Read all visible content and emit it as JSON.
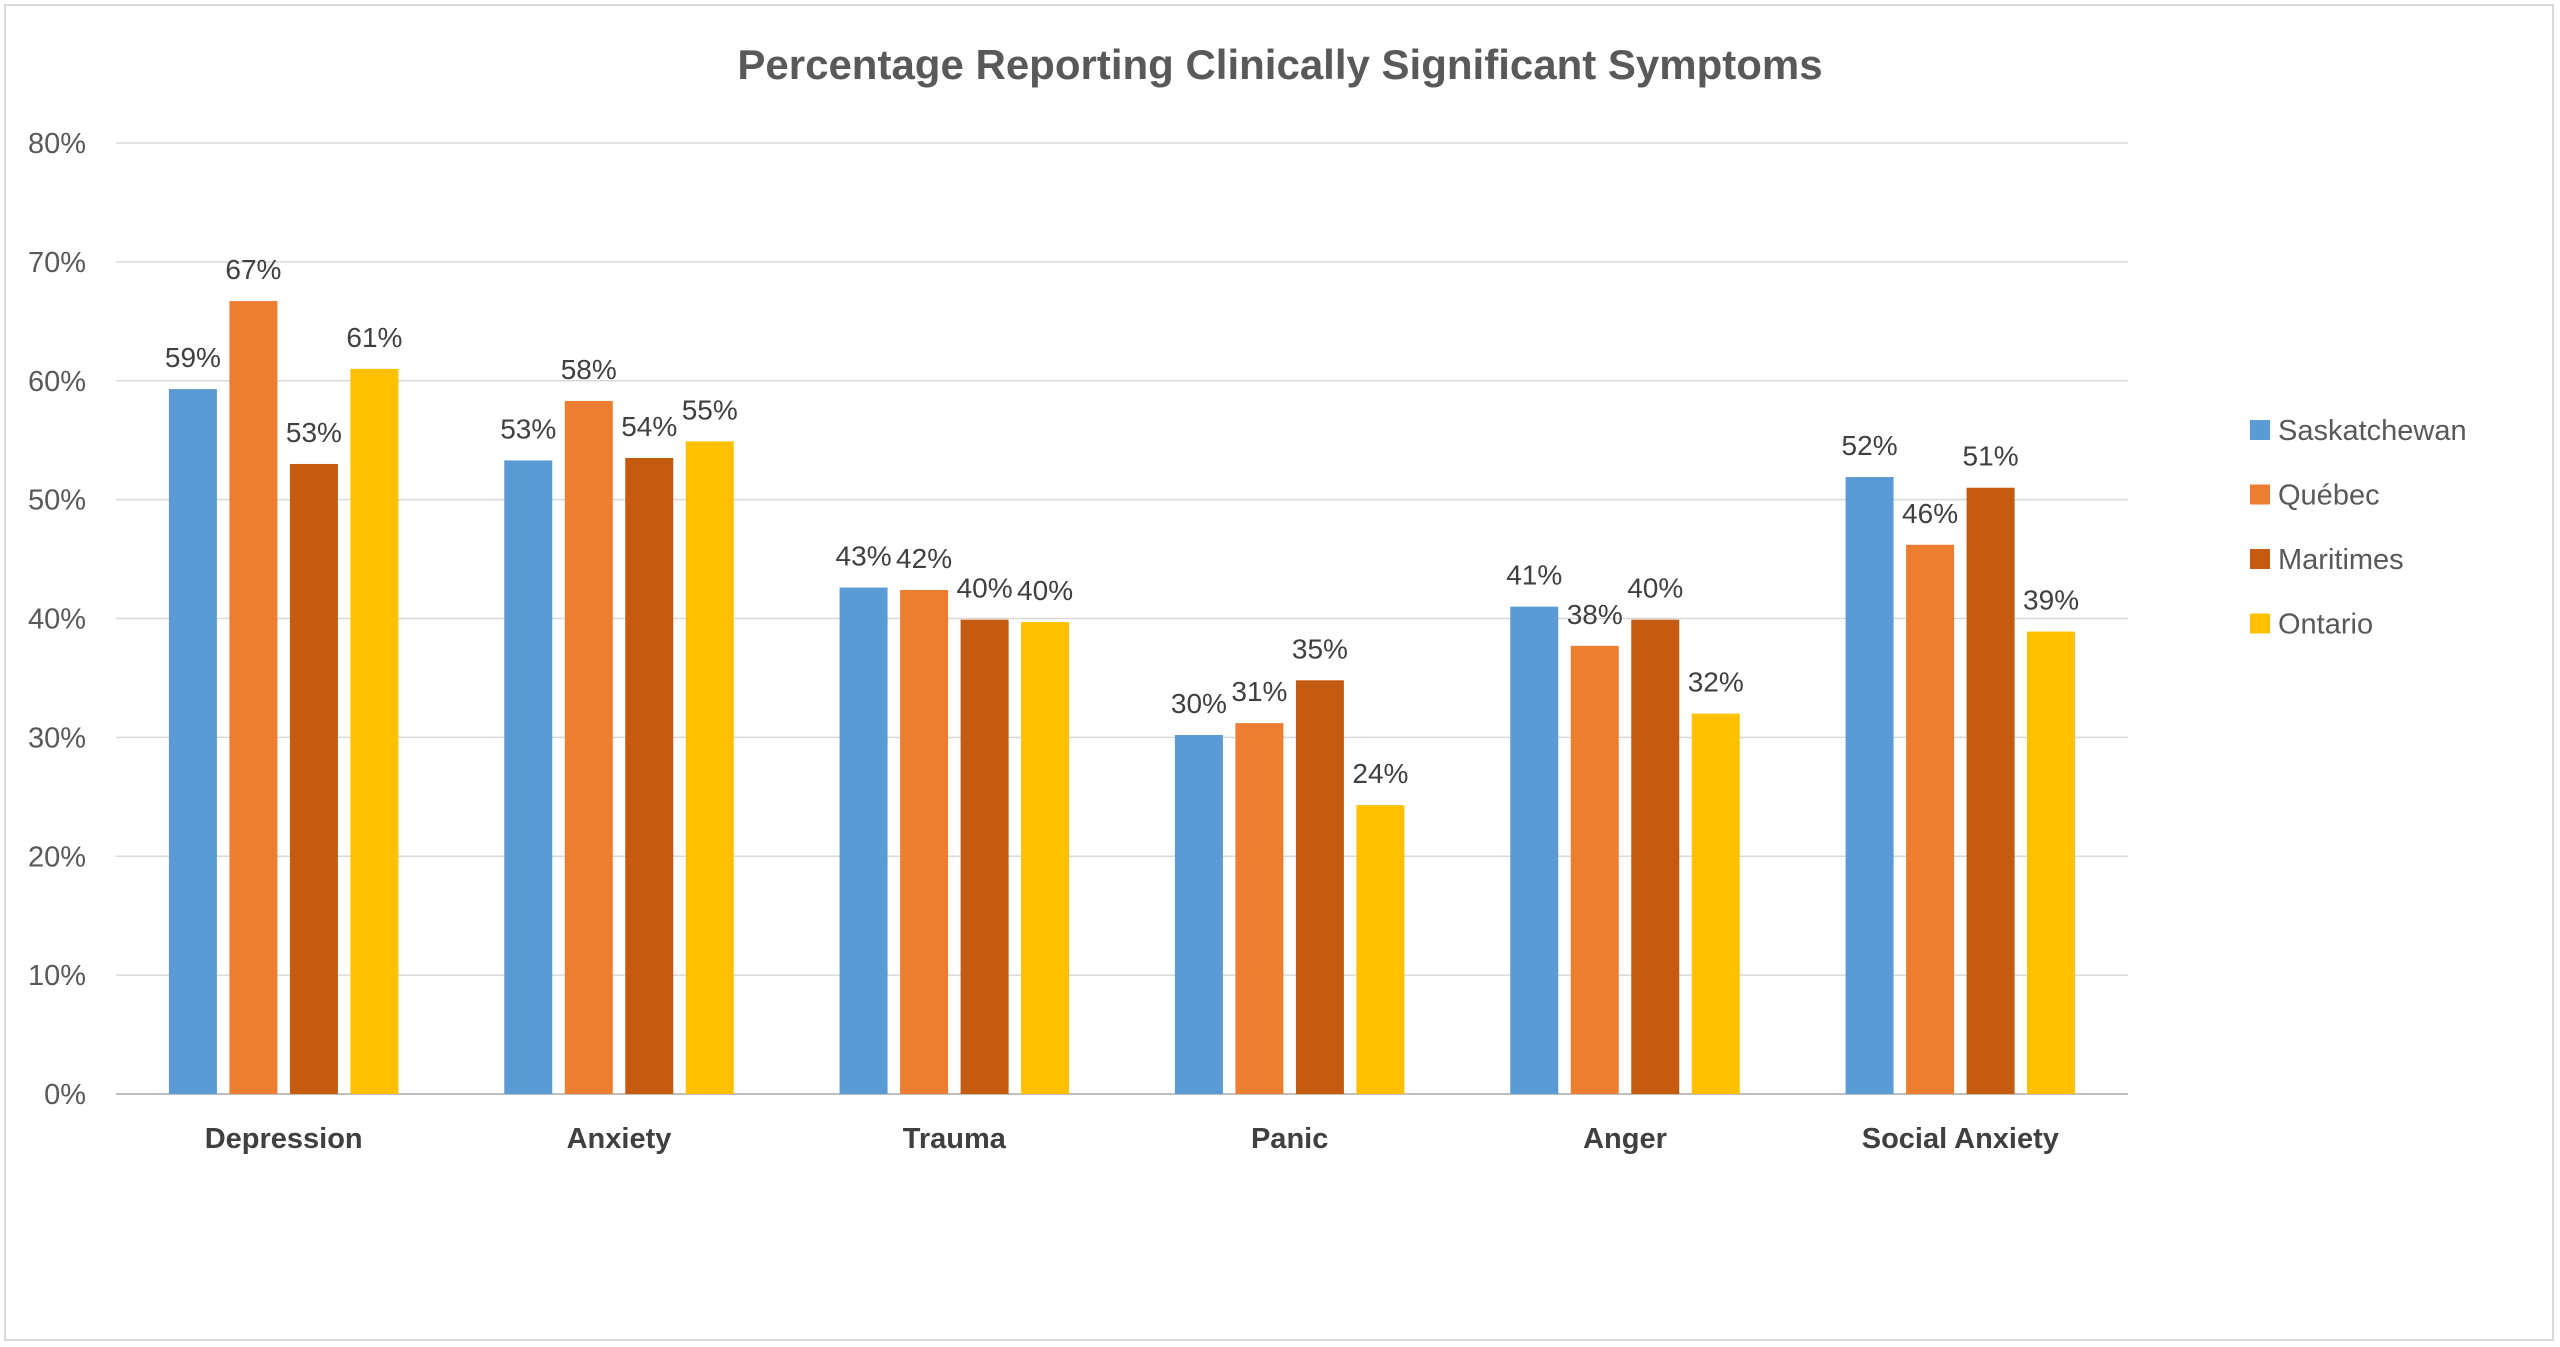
{
  "chart_data": {
    "type": "bar",
    "title": "Percentage Reporting Clinically Significant Symptoms",
    "xlabel": "",
    "ylabel": "",
    "categories": [
      "Depression",
      "Anxiety",
      "Trauma",
      "Panic",
      "Anger",
      "Social Anxiety"
    ],
    "series": [
      {
        "name": "Saskatchewan",
        "color": "#5b9bd5",
        "values": [
          59.3,
          53.3,
          42.6,
          30.2,
          41.0,
          51.9
        ],
        "labels": [
          "59%",
          "53%",
          "43%",
          "30%",
          "41%",
          "52%"
        ]
      },
      {
        "name": "Québec",
        "color": "#ed7d31",
        "values": [
          66.7,
          58.3,
          42.4,
          31.2,
          37.7,
          46.2
        ],
        "labels": [
          "67%",
          "58%",
          "42%",
          "31%",
          "38%",
          "46%"
        ]
      },
      {
        "name": "Maritimes",
        "color": "#c55a11",
        "values": [
          53.0,
          53.5,
          39.9,
          34.8,
          39.9,
          51.0
        ],
        "labels": [
          "53%",
          "54%",
          "40%",
          "35%",
          "40%",
          "51%"
        ]
      },
      {
        "name": "Ontario",
        "color": "#ffc000",
        "values": [
          61.0,
          54.9,
          39.7,
          24.3,
          32.0,
          38.9
        ],
        "labels": [
          "61%",
          "55%",
          "40%",
          "24%",
          "32%",
          "39%"
        ]
      }
    ],
    "ylim": [
      0,
      80
    ],
    "yticks": [
      0,
      10,
      20,
      30,
      40,
      50,
      60,
      70,
      80
    ],
    "ytick_labels": [
      "0%",
      "10%",
      "20%",
      "30%",
      "40%",
      "50%",
      "60%",
      "70%",
      "80%"
    ],
    "grid": true,
    "legend": "right"
  }
}
